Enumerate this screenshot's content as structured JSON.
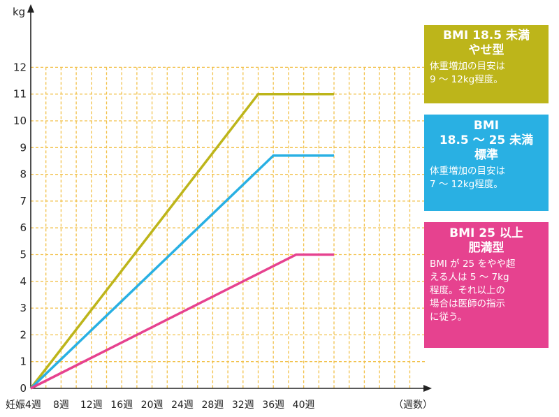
{
  "chart_data": {
    "type": "line",
    "y_unit": "kg",
    "x_unit": "（週数）",
    "x_start_label": "妊娠4週",
    "ylim": [
      0,
      13
    ],
    "xlim": [
      4,
      44
    ],
    "yticks": [
      0,
      1,
      2,
      3,
      4,
      5,
      6,
      7,
      8,
      9,
      10,
      11,
      12
    ],
    "xticks": [
      {
        "value": 4,
        "label": "妊娠4週"
      },
      {
        "value": 8,
        "label": "8週"
      },
      {
        "value": 12,
        "label": "12週"
      },
      {
        "value": 16,
        "label": "16週"
      },
      {
        "value": 20,
        "label": "20週"
      },
      {
        "value": 24,
        "label": "24週"
      },
      {
        "value": 28,
        "label": "28週"
      },
      {
        "value": 32,
        "label": "32週"
      },
      {
        "value": 36,
        "label": "36週"
      },
      {
        "value": 40,
        "label": "40週"
      }
    ],
    "grid": true,
    "series": [
      {
        "color": "#bdb51a",
        "points": [
          [
            4,
            0
          ],
          [
            34,
            11
          ],
          [
            44,
            11
          ]
        ]
      },
      {
        "color": "#29b0e3",
        "points": [
          [
            4,
            0
          ],
          [
            36,
            8.7
          ],
          [
            44,
            8.7
          ]
        ]
      },
      {
        "color": "#e6428f",
        "points": [
          [
            4,
            0
          ],
          [
            39,
            5
          ],
          [
            44,
            5
          ]
        ]
      }
    ]
  },
  "legend": [
    {
      "title_lines": [
        "BMI 18.5 未満",
        "やせ型"
      ],
      "desc": "体重増加の目安は\n9 ～ 12kg程度。",
      "color": "#bdb51a"
    },
    {
      "title_lines": [
        "BMI",
        "18.5 ～ 25 未満",
        "標準"
      ],
      "desc": "体重増加の目安は\n7 ～ 12kg程度。",
      "color": "#29b0e3"
    },
    {
      "title_lines": [
        "BMI 25 以上",
        "肥満型"
      ],
      "desc": "BMI が 25 をやや超\nえる人は 5 ～ 7kg\n程度。それ以上の\n場合は医師の指示\nに従う。",
      "color": "#e6428f"
    }
  ]
}
